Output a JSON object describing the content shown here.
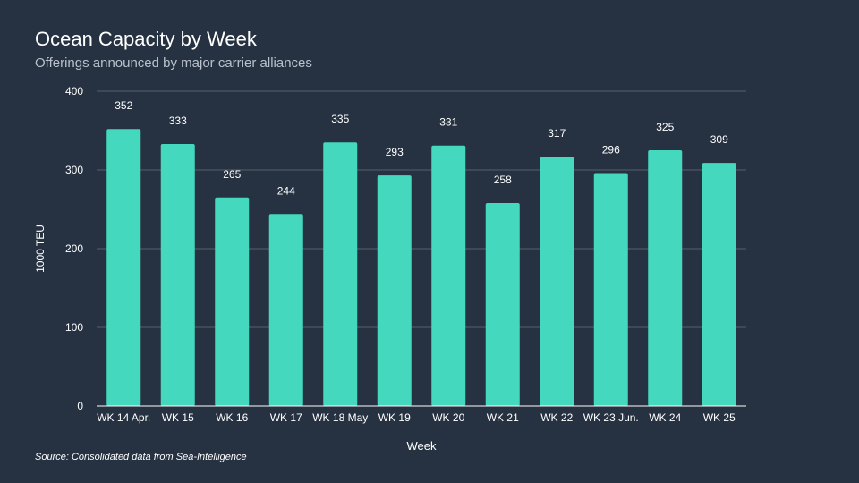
{
  "title": "Ocean Capacity by Week",
  "subtitle": "Offerings announced by major carrier alliances",
  "source": "Source: Consolidated data from Sea-Intelligence",
  "colors": {
    "background": "#263241",
    "bar": "#44d9bf",
    "grid": "#56606c",
    "text": "#ffffff"
  },
  "chart_data": {
    "type": "bar",
    "title": "Ocean Capacity by Week",
    "subtitle": "Offerings announced by major carrier alliances",
    "xlabel": "Week",
    "ylabel": "1000 TEU",
    "ylim": [
      0,
      400
    ],
    "yticks": [
      0,
      100,
      200,
      300,
      400
    ],
    "grid": true,
    "legend": "none",
    "categories": [
      "WK 14 Apr.",
      "WK 15",
      "WK 16",
      "WK 17",
      "WK 18 May",
      "WK 19",
      "WK 20",
      "WK 21",
      "WK 22",
      "WK 23 Jun.",
      "WK 24",
      "WK 25"
    ],
    "values": [
      352,
      333,
      265,
      244,
      335,
      293,
      331,
      258,
      317,
      296,
      325,
      309
    ]
  }
}
